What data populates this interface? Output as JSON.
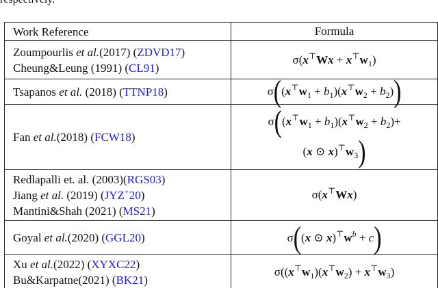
{
  "top_text": "respectively.",
  "table": {
    "header": [
      "Work Reference",
      "Formula"
    ],
    "rows": [
      {
        "reference": [
          [
            "Zoumpourlis ",
            "et al.",
            "(2017) (",
            "ZDVD17",
            ")"
          ],
          [
            "Cheung&Leung (1991) (",
            "CL91",
            ")"
          ]
        ],
        "formula": [
          [
            "σ(",
            "x",
            "⊤",
            "W",
            "x",
            " + ",
            "x",
            "⊤",
            "w",
            "1",
            ")"
          ]
        ]
      },
      {
        "reference": [
          [
            "Tsapanos ",
            "et al.",
            " (2018) (",
            "TTNP18",
            ")"
          ]
        ],
        "formula": [
          [
            "σ",
            "(",
            "(",
            "x",
            "⊤",
            "w",
            "1",
            " + ",
            "b",
            "1",
            ")(",
            "x",
            "⊤",
            "w",
            "2",
            " + ",
            "b",
            "2",
            ")",
            ")"
          ]
        ]
      },
      {
        "reference": [
          [
            "Fan ",
            "et al.",
            "(2018) (",
            "FCW18",
            ")"
          ]
        ],
        "formula": [
          [
            "σ",
            "(",
            "(",
            "x",
            "⊤",
            "w",
            "1",
            " + ",
            "b",
            "1",
            ")(",
            "x",
            "⊤",
            "w",
            "2",
            " + ",
            "b",
            "2",
            ")+"
          ],
          [
            "(",
            "x",
            " ⊙ ",
            "x",
            ")",
            "⊤",
            "w",
            "3",
            ")"
          ]
        ]
      },
      {
        "reference": [
          [
            "Redlapalli et. al. (2003)(",
            "RGS03",
            ")"
          ],
          [
            "Jiang ",
            "et al.",
            " (2019) (",
            "JYZ",
            "+",
            "20",
            ")"
          ],
          [
            "Mantini&Shah (2021) (",
            "MS21",
            ")"
          ]
        ],
        "formula": [
          [
            "σ(",
            "x",
            "⊤",
            "W",
            "x",
            ")"
          ]
        ]
      },
      {
        "reference": [
          [
            "Goyal ",
            "et al.",
            "(2020) (",
            "GGL20",
            ")"
          ]
        ],
        "formula": [
          [
            "σ",
            "(",
            "(",
            "x",
            " ⊙ ",
            "x",
            ")",
            "⊤",
            "w",
            "b",
            " + ",
            "c",
            ")"
          ]
        ]
      },
      {
        "reference": [
          [
            "Xu ",
            "et al.",
            "(2022) (",
            "XYXC22",
            ")"
          ],
          [
            "Bu&Karpatne(2021) (",
            "BK21",
            ")"
          ]
        ],
        "formula": [
          [
            "σ((",
            "x",
            "⊤",
            "w",
            "1",
            ")(",
            "x",
            "⊤",
            "w",
            "2",
            ") + ",
            "x",
            "⊤",
            "w",
            "3",
            ")"
          ]
        ]
      }
    ]
  }
}
